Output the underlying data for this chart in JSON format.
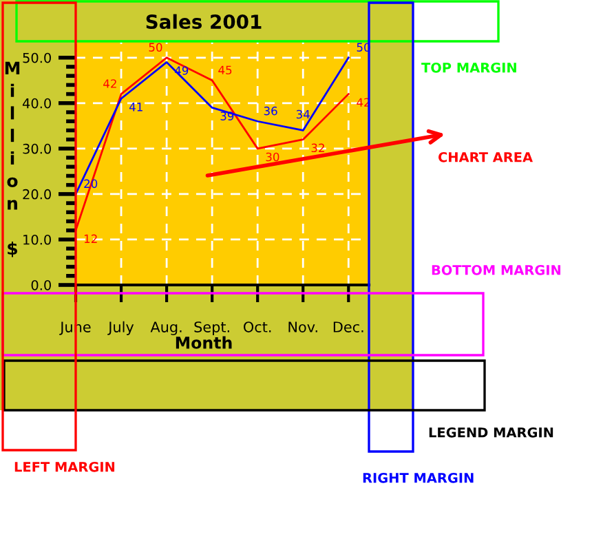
{
  "chart_data": {
    "type": "line",
    "title": "Sales 2001",
    "xlabel": "Month",
    "ylabel": "Million $",
    "categories": [
      "June",
      "July",
      "Aug.",
      "Sept.",
      "Oct.",
      "Nov.",
      "Dec."
    ],
    "series": [
      {
        "color": "#ff0000",
        "values": [
          12,
          42,
          50,
          45,
          30,
          32,
          42
        ]
      },
      {
        "color": "#0000ff",
        "values": [
          20,
          41,
          49,
          39,
          36,
          34,
          50
        ]
      }
    ],
    "ylim": [
      0,
      53.6
    ],
    "yticks": [
      {
        "value": 0,
        "label": "0.0"
      },
      {
        "value": 2,
        "label": null
      },
      {
        "value": 4,
        "label": null
      },
      {
        "value": 6,
        "label": null
      },
      {
        "value": 8,
        "label": null
      },
      {
        "value": 10,
        "label": "10.0"
      },
      {
        "value": 12,
        "label": null
      },
      {
        "value": 14,
        "label": null
      },
      {
        "value": 16,
        "label": null
      },
      {
        "value": 18,
        "label": null
      },
      {
        "value": 20,
        "label": "20.0"
      },
      {
        "value": 22,
        "label": null
      },
      {
        "value": 24,
        "label": null
      },
      {
        "value": 26,
        "label": null
      },
      {
        "value": 28,
        "label": null
      },
      {
        "value": 30,
        "label": "30.0"
      },
      {
        "value": 32,
        "label": null
      },
      {
        "value": 34,
        "label": null
      },
      {
        "value": 36,
        "label": null
      },
      {
        "value": 38,
        "label": null
      },
      {
        "value": 40,
        "label": "40.0"
      },
      {
        "value": 42,
        "label": null
      },
      {
        "value": 44,
        "label": null
      },
      {
        "value": 46,
        "label": null
      },
      {
        "value": 48,
        "label": null
      },
      {
        "value": 50,
        "label": "50.0"
      }
    ],
    "grid": true,
    "data_labels": true,
    "marker": "none",
    "line_style": "solid",
    "annotations": [
      "TOP MARGIN",
      "CHART AREA",
      "BOTTOM MARGIN",
      "LEGEND MARGIN",
      "RIGHT MARGIN",
      "LEFT MARGIN"
    ]
  }
}
